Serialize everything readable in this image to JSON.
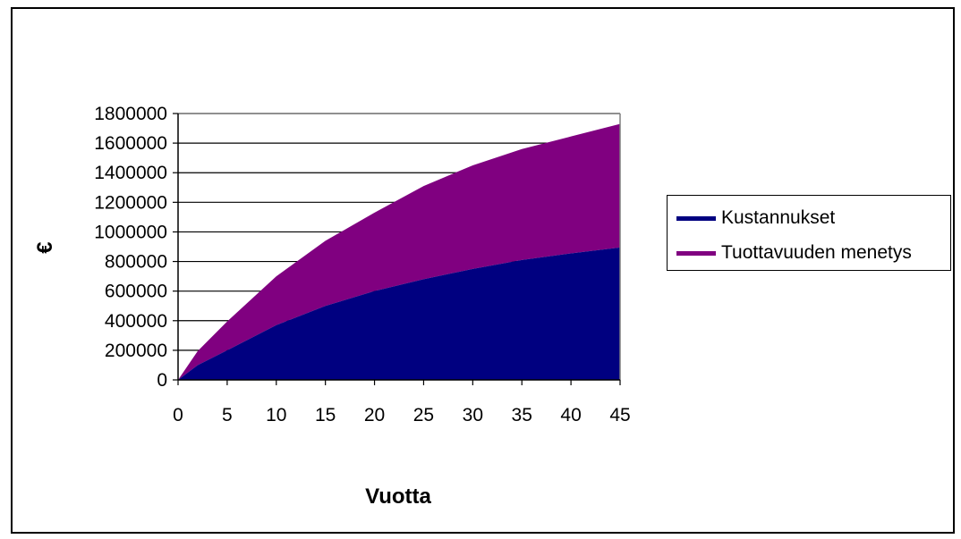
{
  "chart_data": {
    "type": "area",
    "stacked": true,
    "xlabel": "Vuotta",
    "ylabel": "€",
    "xlim": [
      0,
      45
    ],
    "ylim": [
      0,
      1800000
    ],
    "xticks": [
      "0",
      "5",
      "10",
      "15",
      "20",
      "25",
      "30",
      "35",
      "40",
      "45"
    ],
    "yticks": [
      "0",
      "200000",
      "400000",
      "600000",
      "800000",
      "1000000",
      "1200000",
      "1400000",
      "1600000",
      "1800000"
    ],
    "grid": "horizontal",
    "legend_position": "right",
    "x": [
      0,
      2,
      5,
      10,
      15,
      20,
      25,
      30,
      35,
      40,
      45
    ],
    "series": [
      {
        "name": "Kustannukset",
        "color": "#000080",
        "values": [
          0,
          100000,
          200000,
          370000,
          500000,
          600000,
          680000,
          750000,
          810000,
          855000,
          895000
        ]
      },
      {
        "name": "Tuottavuuden menetys",
        "color": "#800080",
        "values": [
          0,
          95000,
          195000,
          330000,
          440000,
          530000,
          630000,
          700000,
          750000,
          790000,
          835000
        ]
      }
    ]
  }
}
